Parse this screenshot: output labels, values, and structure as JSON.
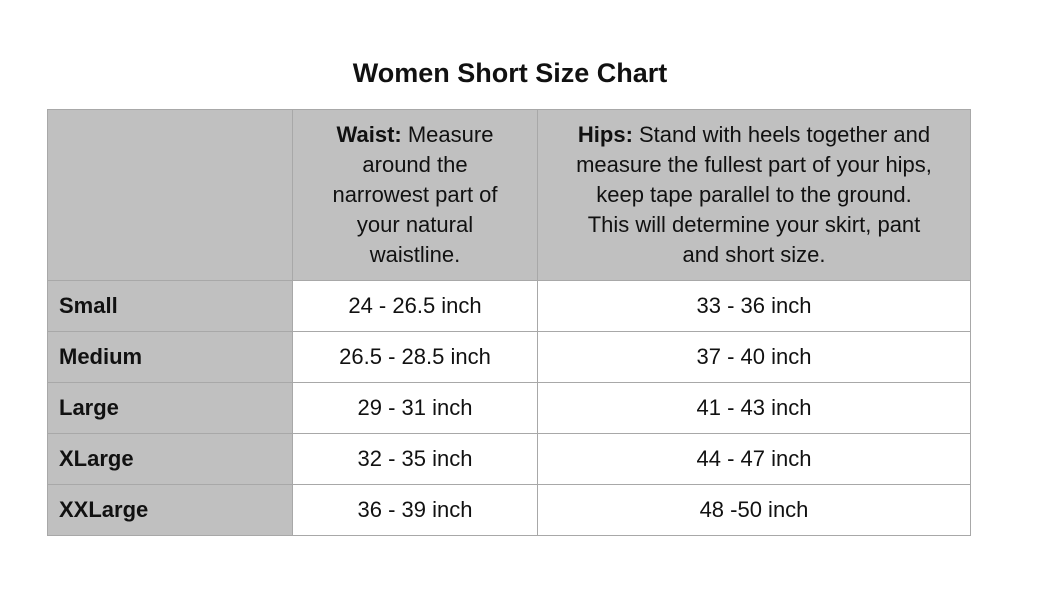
{
  "title": "Women Short Size Chart",
  "header": {
    "waist_label": "Waist:",
    "waist_text": "  Measure\naround the\nnarrowest part of\nyour natural\nwaistline.",
    "hips_label": "Hips:",
    "hips_text": " Stand with heels together and\nmeasure the fullest part of your hips,\nkeep tape parallel to the ground.\nThis will determine your skirt, pant\nand short size."
  },
  "rows": [
    {
      "size": "Small",
      "waist": "24 - 26.5 inch",
      "hips": "33 - 36 inch"
    },
    {
      "size": "Medium",
      "waist": "26.5 - 28.5 inch",
      "hips": "37 - 40 inch"
    },
    {
      "size": "Large",
      "waist": "29 - 31 inch",
      "hips": "41 - 43 inch"
    },
    {
      "size": "XLarge",
      "waist": "32 - 35 inch",
      "hips": "44 - 47 inch"
    },
    {
      "size": "XXLarge",
      "waist": "36 - 39 inch",
      "hips": "48 -50 inch"
    }
  ],
  "colors": {
    "header_bg": "#c0c0c0",
    "border": "#a8a8a8"
  }
}
